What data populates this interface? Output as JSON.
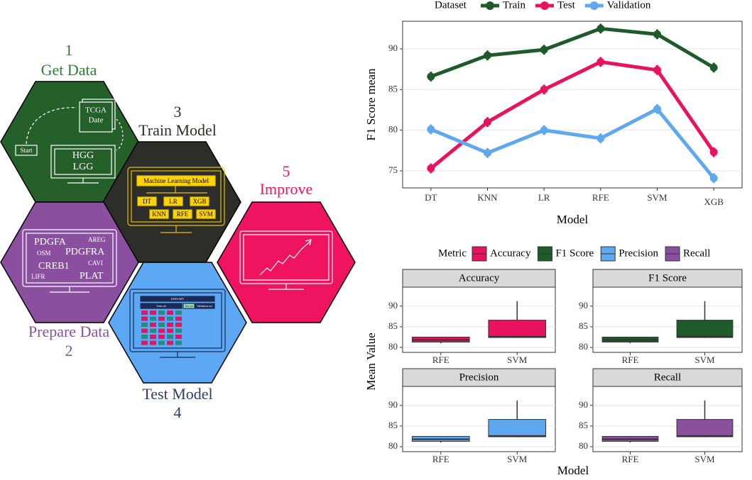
{
  "diagram": {
    "steps": [
      {
        "number": "1",
        "label": "Get Data",
        "items": [
          "TCGA",
          "Date",
          "Start",
          "HGG",
          "LGG"
        ]
      },
      {
        "number": "3",
        "label": "Train Model",
        "items": [
          "Machine Learning Model",
          "DT",
          "LR",
          "XGB",
          "KNN",
          "RFE",
          "SVM"
        ]
      },
      {
        "number": "5",
        "label": "Improve",
        "items": []
      },
      {
        "number": "2",
        "label": "Prepare Data",
        "items": [
          "PDGFA",
          "AREG",
          "OSM",
          "PDGFRA",
          "CREB1",
          "CAVI",
          "LIFR",
          "PLAT"
        ]
      },
      {
        "number": "4",
        "label": "Test Model",
        "items": [
          "DATA SET",
          "Train set",
          "Test set",
          "Validation set"
        ]
      }
    ]
  },
  "chart_data": [
    {
      "type": "line",
      "legend_title": "Dataset",
      "xlabel": "Model",
      "ylabel": "F1 Score mean",
      "categories": [
        "DT",
        "KNN",
        "LR",
        "RFE",
        "SVM",
        "XGB"
      ],
      "series": [
        {
          "name": "Train",
          "color": "#1f5a2a",
          "values": [
            86.6,
            89.2,
            89.9,
            92.5,
            91.8,
            87.7
          ],
          "errors": [
            0.6,
            0.6,
            0.6,
            0.6,
            0.6,
            0.6
          ]
        },
        {
          "name": "Test",
          "color": "#e8135f",
          "values": [
            75.3,
            81.0,
            85.0,
            88.4,
            87.4,
            77.3
          ],
          "errors": [
            0.6,
            0.6,
            0.6,
            0.6,
            0.6,
            0.6
          ]
        },
        {
          "name": "Validation",
          "color": "#5fa8f0",
          "values": [
            80.1,
            77.2,
            80.0,
            79.0,
            82.6,
            74.1
          ],
          "errors": [
            0.6,
            0.6,
            0.6,
            0.6,
            0.6,
            0.6
          ]
        }
      ],
      "ylim": [
        72.9,
        93.4
      ],
      "yticks": [
        75,
        80,
        85,
        90
      ],
      "grid": true
    },
    {
      "type": "box",
      "legend_title": "Metric",
      "xlabel": "Model",
      "ylabel": "Mean Value",
      "ylim": [
        78.8,
        94.6
      ],
      "yticks": [
        80,
        85,
        90
      ],
      "grid": true,
      "facets": [
        {
          "name": "Accuracy",
          "color": "#e8135f",
          "categories": [
            "RFE",
            "SVM"
          ],
          "min": [
            81.0,
            82.3
          ],
          "q1": [
            81.3,
            82.4
          ],
          "median": [
            81.8,
            82.6
          ],
          "q3": [
            82.5,
            86.6
          ],
          "max": [
            82.5,
            91.2
          ]
        },
        {
          "name": "F1 Score",
          "color": "#1f5a2a",
          "categories": [
            "RFE",
            "SVM"
          ],
          "min": [
            81.0,
            82.3
          ],
          "q1": [
            81.3,
            82.4
          ],
          "median": [
            81.8,
            82.6
          ],
          "q3": [
            82.5,
            86.6
          ],
          "max": [
            82.5,
            91.2
          ]
        },
        {
          "name": "Precision",
          "color": "#5fa8f0",
          "categories": [
            "RFE",
            "SVM"
          ],
          "min": [
            81.0,
            82.3
          ],
          "q1": [
            81.3,
            82.4
          ],
          "median": [
            81.8,
            82.6
          ],
          "q3": [
            82.5,
            86.6
          ],
          "max": [
            82.5,
            91.2
          ]
        },
        {
          "name": "Recall",
          "color": "#8a4f9e",
          "categories": [
            "RFE",
            "SVM"
          ],
          "min": [
            81.0,
            82.3
          ],
          "q1": [
            81.3,
            82.4
          ],
          "median": [
            81.8,
            82.6
          ],
          "q3": [
            82.5,
            86.6
          ],
          "max": [
            82.5,
            91.2
          ]
        }
      ]
    }
  ]
}
